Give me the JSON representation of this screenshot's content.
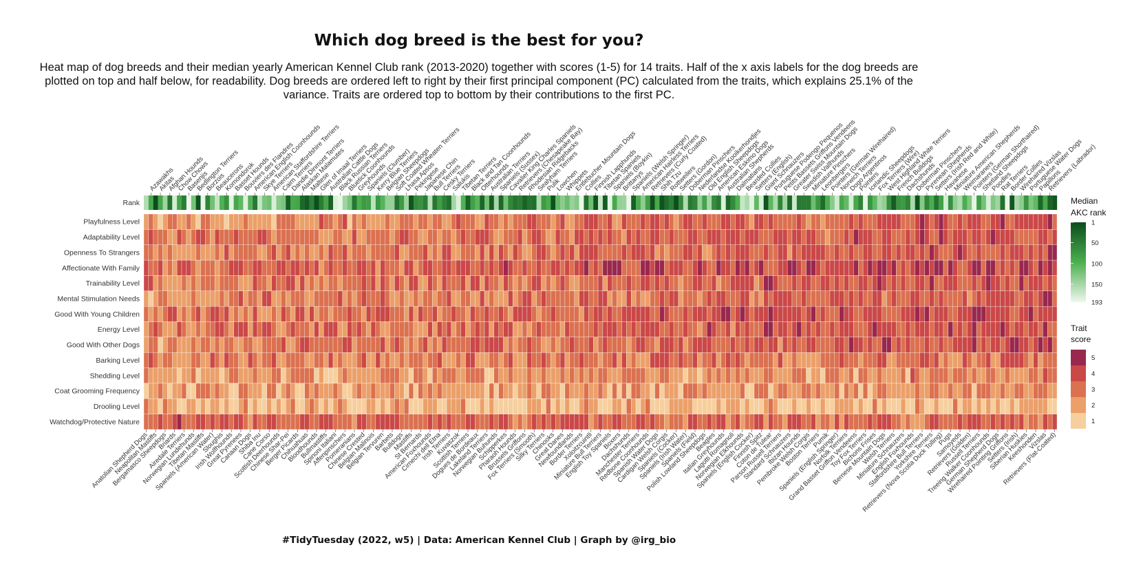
{
  "title": "Which dog breed is the best for you?",
  "subtitle_lines": [
    "Heat map of dog breeds and their median yearly American Kennel Club rank (2013-2020) together with scores (1-5) for 14 traits. Half of the x axis labels for the dog breeds are",
    "plotted on top and half below, for readability. Dog breeds are ordered left to right by their first principal component (PC) calculated from the traits, which explains 25.1% of the",
    "variance. Traits are ordered top to bottom by their contributions to the first PC."
  ],
  "caption": "#TidyTuesday (2022, w5) | Data: American Kennel Club | Graph by @irg_bio",
  "colors": {
    "rank_low": "#0b4d1b",
    "rank_mid": "#4caf50",
    "rank_high": "#eef8ec",
    "score": [
      "#f6cf9e",
      "#eba06a",
      "#db7150",
      "#cb4848",
      "#99284e"
    ]
  },
  "legend_rank": {
    "title_lines": [
      "Median",
      "AKC rank"
    ],
    "ticks": [
      "1",
      "50",
      "100",
      "150",
      "193"
    ]
  },
  "legend_score": {
    "title_lines": [
      "Trait",
      "score"
    ],
    "ticks": [
      "5",
      "4",
      "3",
      "2",
      "1"
    ]
  },
  "chart_data": {
    "type": "heatmap",
    "title": "Which dog breed is the best for you?",
    "rank_row_label": "Rank",
    "traits": [
      "Playfulness Level",
      "Adaptability Level",
      "Openness To Strangers",
      "Affectionate With Family",
      "Trainability Level",
      "Mental Stimulation Needs",
      "Good With Young Children",
      "Energy Level",
      "Good With Other Dogs",
      "Barking Level",
      "Shedding Level",
      "Coat Grooming Frequency",
      "Drooling Level",
      "Watchdog/Protective Nature"
    ],
    "breeds_top": [
      "Azawakhs",
      "Akitas",
      "Afghan Hounds",
      "Chow Chows",
      "Basenjis",
      "Bedlington Terriers",
      "Borzois",
      "Beaucerons",
      "Komondorok",
      "Basset Hounds",
      "Bouviers des Flandres",
      "American English Coonhounds",
      "Skye Terriers",
      "American Staffordshire Terriers",
      "Cairn Terriers",
      "Dandie Dinmont Terriers",
      "Alaskan Malamutes",
      "Maltese",
      "Glen of Imaal Terriers",
      "Australian Cattle Dogs",
      "Black Russian Terriers",
      "Bluetick Coonhounds",
      "Greyhounds",
      "Spaniels (Clumber)",
      "Kerry Blue Terriers",
      "Belgian Sheepdogs",
      "Soft Coated Wheaten Terriers",
      "Lhasa Apsos",
      "Pekingese",
      "Japanese Chin",
      "Bull Terriers",
      "Cesky Terriers",
      "Salukis",
      "Tibetan Terriers",
      "Black and Tan Coonhounds",
      "Otterhounds",
      "Australian Terriers",
      "Spaniels (Sussex)",
      "Cavalier King Charles Spaniels",
      "Retrievers (Chesapeake Bay)",
      "Rhodesian Ridgebacks",
      "Sealyham Terriers",
      "Pulik",
      "Lowchen",
      "Whippets",
      "Entlebucher Mountain Dogs",
      "Collies",
      "Finnish Lapphunds",
      "Tibetan Spaniels",
      "Spaniels (Boykin)",
      "Brittanys",
      "Spaniels (Welsh Springer)",
      "American Hairless Terriers",
      "Retrievers (Curly Coated)",
      "Shih Tzu",
      "Rottweilers",
      "Setters (Gordon)",
      "Doberman Pinschers",
      "Nederlandse Kooikerhondjes",
      "Old English Sheepdogs",
      "American Eskimo Dogs",
      "Australian Shepherds",
      "Dalmatians",
      "Bearded Collies",
      "Setters (English)",
      "Giant Schnauzers",
      "Portuguese Podengo Pequenos",
      "Petits Bassets Griffons Vendeens",
      "Greater Swiss Mountain Dogs",
      "Swedish Vallhunds",
      "Miniature Pinschers",
      "Leonbergers",
      "Pointers (German Wirehaired)",
      "Norwich Terriers",
      "Dogo Argentinos",
      "Pointers",
      "Icelandic Sheepdogs",
      "Fox Terriers (Wire)",
      "West Highland White Terriers",
      "French Bulldogs",
      "Dachshunds",
      "Doberman Pinschers",
      "Pyrenean Shepherds",
      "Setters (Irish Red and White)",
      "Havanese",
      "Miniature American Shepherds",
      "Weimaraners",
      "Pointers (German Shorthaired)",
      "Shetland Sheepdogs",
      "Poodles",
      "Rat Terriers",
      "Border Collies",
      "Wirehaired Vizslas",
      "Portuguese Water Dogs",
      "Papillons",
      "Retrievers (Labrador)"
    ],
    "breeds_bottom": [
      "Anatolian Shepherd Dogs",
      "Neapolitan Mastiffs",
      "Bergamasco Sheepdogs",
      "Briards",
      "Airedale Terriers",
      "Norwegian Lundehunds",
      "Tibetan Mastiffs",
      "Spaniels (American Water)",
      "Sloughis",
      "Irish Wolfhounds",
      "Great Pyrenees",
      "Canaan Dogs",
      "Shiba Inu",
      "Cane Corso",
      "Scottish Deerhounds",
      "Chinese Shar-Pei",
      "Berger Picards",
      "Chihuahuas",
      "Bloodhounds",
      "Bullmastiffs",
      "Spinoni Italiani",
      "Affenpinschers",
      "Pomeranians",
      "Chinese Crested",
      "Belgian Malinois",
      "Belgian Tervuren",
      "Barbets",
      "Bulldogs",
      "Mastiffs",
      "St Bernards",
      "American Foxhounds",
      "Cirnechi dell Etna",
      "Irish Terriers",
      "Kuvaszok",
      "Scottish Terriers",
      "Dogues de Bordeaux",
      "Lakeland Terriers",
      "Norwegian Buhunds",
      "Schipperkes",
      "Pharaoh Hounds",
      "Brussels Griffons",
      "Fox Terriers (Smooth)",
      "Silky Terriers",
      "Chinooks",
      "Great Danes",
      "Newfoundlands",
      "Border Terriers",
      "Xoloitzcuintli",
      "Miniature Bull Terriers",
      "English Toy Spaniels",
      "Boxers",
      "Dachshunds",
      "Manchester Terriers",
      "Redbone Coonhounds",
      "Spanish Water Dogs",
      "Cardigan Welsh Corgis",
      "Spaniels (Cocker)",
      "Spaniels (Irish Water)",
      "Spaniels (Field)",
      "Polish Lowland Sheepdogs",
      "Beagles",
      "Italian Greyhounds",
      "Lagotti Romagnoli",
      "Norwegian Elkhounds",
      "Spaniels (English Cocker)",
      "Finnish Spitz",
      "Coton de Tulear",
      "Parson Russell Terriers",
      "Standard Schnauzers",
      "Ibizan Hounds",
      "Pembroke Welsh Corgis",
      "Boston Terriers",
      "Pumik",
      "Spaniels (English Springer)",
      "Norfolk Terriers",
      "Grand Basset Griffon Vendeens",
      "Toy Fox Terriers",
      "Bichons Frises",
      "Bernese Mountain Dogs",
      "Welsh Terriers",
      "Miniature Schnauzers",
      "English Foxhounds",
      "Staffordshire Bull Terriers",
      "Yorkshire Terriers",
      "Retrievers (Nova Scotia Duck Tolling)",
      "Pugs",
      "Samoyeds",
      "Retrievers (Golden)",
      "Russell Terriers",
      "Treeing Walker Coonhounds",
      "German Shepherd Dogs",
      "Wirehaired Pointing Griffons",
      "Setters (Irish)",
      "Siberian Huskies",
      "Keeshonden",
      "Vizslas",
      "Retrievers (Flat-Coated)"
    ]
  }
}
